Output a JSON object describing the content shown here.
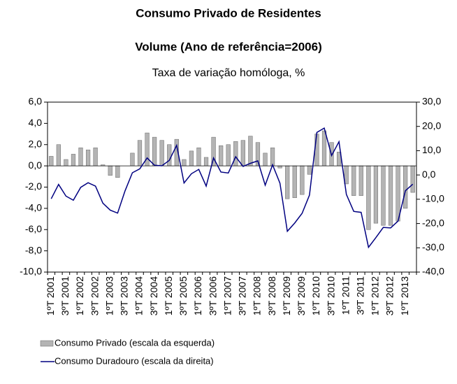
{
  "chart_data": {
    "type": "bar_line",
    "title": "Consumo Privado de Residentes",
    "subtitle": "Volume (Ano de referência=2006)",
    "annotation": "Taxa de variação homóloga, %",
    "categories": [
      "1ºT 2001",
      null,
      "3ºT 2001",
      null,
      "1ºT 2002",
      null,
      "3ºT 2002",
      null,
      "1ºT 2003",
      null,
      "3ºT 2003",
      null,
      "1ºT 2004",
      null,
      "3ºT 2004",
      null,
      "1ºT 2005",
      null,
      "3ºT 2005",
      null,
      "1ºT 2006",
      null,
      "3ºT 2006",
      null,
      "1ºT 2007",
      null,
      "3ºT 2007",
      null,
      "1ºT 2008",
      null,
      "3ºT 2008",
      null,
      "1ºT 2009",
      null,
      "3ºT 2009",
      null,
      "1ºT 2010",
      null,
      "3ºT 2010",
      null,
      "1ºT 2011",
      null,
      "3ºT 2011",
      null,
      "1ºT 2012",
      null,
      "3ºT 2012",
      null,
      "1ºT 2013",
      null
    ],
    "series": [
      {
        "name": "Consumo Privado (escala da esquerda)",
        "type": "bar",
        "color": "#b4b4b4",
        "values": [
          0.9,
          2.0,
          0.6,
          1.1,
          1.7,
          1.5,
          1.7,
          0.1,
          -0.9,
          -1.1,
          0.0,
          1.2,
          2.4,
          3.1,
          2.7,
          2.4,
          2.0,
          2.5,
          0.6,
          1.4,
          1.7,
          0.8,
          2.7,
          1.9,
          2.0,
          2.3,
          2.4,
          2.8,
          2.2,
          1.2,
          1.7,
          -0.2,
          -3.1,
          -3.0,
          -2.7,
          -0.8,
          3.0,
          3.3,
          2.2,
          1.3,
          -1.7,
          -2.8,
          -2.8,
          -6.0,
          -5.4,
          -5.6,
          -5.6,
          -5.2,
          -4.0,
          -2.5
        ]
      },
      {
        "name": "Consumo Duradouro (escala da direita)",
        "type": "line",
        "axis": "y2",
        "color": "#000080",
        "values": [
          -9.8,
          -3.9,
          -8.7,
          -10.4,
          -5.1,
          -3.2,
          -4.6,
          -11.6,
          -14.5,
          -15.7,
          -6.6,
          0.9,
          2.5,
          7.0,
          4.0,
          3.8,
          6.0,
          12.2,
          -3.3,
          0.5,
          2.3,
          -4.6,
          7.0,
          1.2,
          0.8,
          7.5,
          3.5,
          4.8,
          5.8,
          -4.2,
          4.2,
          -3.4,
          -23.2,
          -19.8,
          -15.8,
          -8.3,
          17.5,
          19.3,
          8.0,
          13.7,
          -8.0,
          -15.0,
          -15.4,
          -29.8,
          -25.8,
          -21.6,
          -21.8,
          -19.0,
          -6.5,
          -3.8
        ]
      }
    ],
    "ylim": [
      -10,
      6
    ],
    "yticks": [
      {
        "value": -10,
        "label": "-10,0"
      },
      {
        "value": -8,
        "label": "-8,0"
      },
      {
        "value": -6,
        "label": "-6,0"
      },
      {
        "value": -4,
        "label": "-4,0"
      },
      {
        "value": -2,
        "label": "-2,0"
      },
      {
        "value": 0,
        "label": "0,0"
      },
      {
        "value": 2,
        "label": "2,0"
      },
      {
        "value": 4,
        "label": "4,0"
      },
      {
        "value": 6,
        "label": "6,0"
      }
    ],
    "y2lim": [
      -40,
      30
    ],
    "y2ticks": [
      {
        "value": -40,
        "label": "-40,0"
      },
      {
        "value": -30,
        "label": "-30,0"
      },
      {
        "value": -20,
        "label": "-20,0"
      },
      {
        "value": -10,
        "label": "-10,0"
      },
      {
        "value": 0,
        "label": "0,0"
      },
      {
        "value": 10,
        "label": "10,0"
      },
      {
        "value": 20,
        "label": "20,0"
      },
      {
        "value": 30,
        "label": "30,0"
      }
    ],
    "legend": "bottom-left"
  }
}
